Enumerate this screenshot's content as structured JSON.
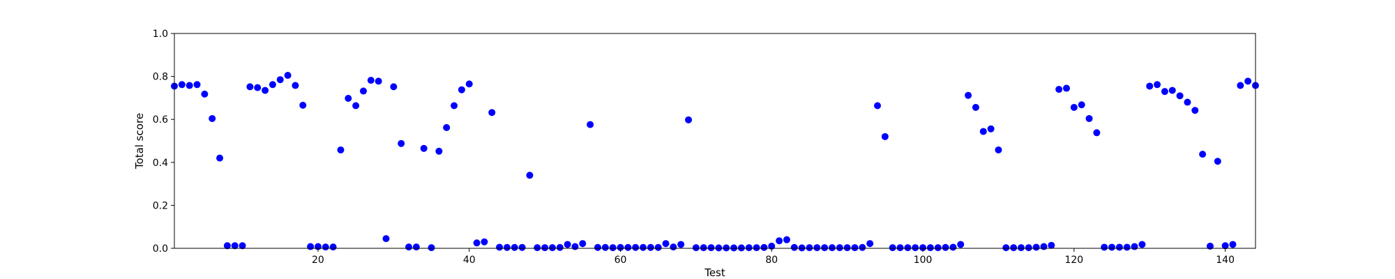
{
  "chart_data": {
    "type": "scatter",
    "title": "",
    "xlabel": "Test",
    "ylabel": "Total score",
    "xlim": [
      1,
      144
    ],
    "ylim": [
      0.0,
      1.0
    ],
    "xticks": [
      20,
      40,
      60,
      80,
      100,
      120,
      140
    ],
    "xtick_labels": [
      "20",
      "40",
      "60",
      "80",
      "100",
      "120",
      "140"
    ],
    "yticks": [
      0.0,
      0.2,
      0.4,
      0.6,
      0.8,
      1.0
    ],
    "ytick_labels": [
      "0.0",
      "0.2",
      "0.4",
      "0.6",
      "0.8",
      "1.0"
    ],
    "grid": false,
    "marker_color": "#0000ff",
    "series": [
      {
        "x": [
          1,
          2,
          3,
          4,
          5,
          6,
          7,
          8,
          9,
          10,
          11,
          12,
          13,
          14,
          15,
          16,
          17,
          18,
          19,
          20,
          21,
          22,
          23,
          24,
          25,
          26,
          27,
          28,
          29,
          30,
          31,
          32,
          33,
          34,
          35,
          36,
          37,
          38,
          39,
          40,
          41,
          42,
          43,
          44,
          45,
          46,
          47,
          48,
          49,
          50,
          51,
          52,
          53,
          54,
          55,
          56,
          57,
          58,
          59,
          60,
          61,
          62,
          63,
          64,
          65,
          66,
          67,
          68,
          69,
          70,
          71,
          72,
          73,
          74,
          75,
          76,
          77,
          78,
          79,
          80,
          81,
          82,
          83,
          84,
          85,
          86,
          87,
          88,
          89,
          90,
          91,
          92,
          93,
          94,
          95,
          96,
          97,
          98,
          99,
          100,
          101,
          102,
          103,
          104,
          105,
          106,
          107,
          108,
          109,
          110,
          111,
          112,
          113,
          114,
          115,
          116,
          117,
          118,
          119,
          120,
          121,
          122,
          123,
          124,
          125,
          126,
          127,
          128,
          129,
          130,
          131,
          132,
          133,
          134,
          135,
          136,
          137,
          138,
          139,
          140,
          141,
          142,
          143,
          144
        ],
        "y": [
          0.755,
          0.762,
          0.758,
          0.762,
          0.718,
          0.604,
          0.42,
          0.012,
          0.012,
          0.012,
          0.752,
          0.748,
          0.735,
          0.762,
          0.785,
          0.805,
          0.758,
          0.666,
          0.008,
          0.008,
          0.006,
          0.006,
          0.458,
          0.698,
          0.664,
          0.732,
          0.782,
          0.778,
          0.045,
          0.752,
          0.488,
          0.006,
          0.006,
          0.465,
          0.003,
          0.452,
          0.562,
          0.664,
          0.738,
          0.765,
          0.025,
          0.03,
          0.632,
          0.005,
          0.004,
          0.004,
          0.004,
          0.34,
          0.003,
          0.003,
          0.003,
          0.004,
          0.018,
          0.008,
          0.022,
          0.576,
          0.004,
          0.004,
          0.003,
          0.004,
          0.004,
          0.004,
          0.004,
          0.004,
          0.004,
          0.022,
          0.006,
          0.018,
          0.598,
          0.003,
          0.003,
          0.003,
          0.002,
          0.002,
          0.002,
          0.002,
          0.003,
          0.003,
          0.004,
          0.01,
          0.035,
          0.04,
          0.004,
          0.002,
          0.003,
          0.003,
          0.003,
          0.003,
          0.003,
          0.003,
          0.003,
          0.004,
          0.022,
          0.664,
          0.52,
          0.003,
          0.003,
          0.003,
          0.003,
          0.003,
          0.003,
          0.003,
          0.004,
          0.005,
          0.018,
          0.712,
          0.656,
          0.544,
          0.556,
          0.458,
          0.003,
          0.003,
          0.003,
          0.003,
          0.005,
          0.008,
          0.014,
          0.74,
          0.745,
          0.656,
          0.668,
          0.604,
          0.538,
          0.005,
          0.005,
          0.005,
          0.005,
          0.008,
          0.018,
          0.755,
          0.762,
          0.73,
          0.735,
          0.71,
          0.68,
          0.642,
          0.438,
          0.01,
          0.405,
          0.012,
          0.018,
          0.758,
          0.778,
          0.758
        ]
      }
    ]
  }
}
